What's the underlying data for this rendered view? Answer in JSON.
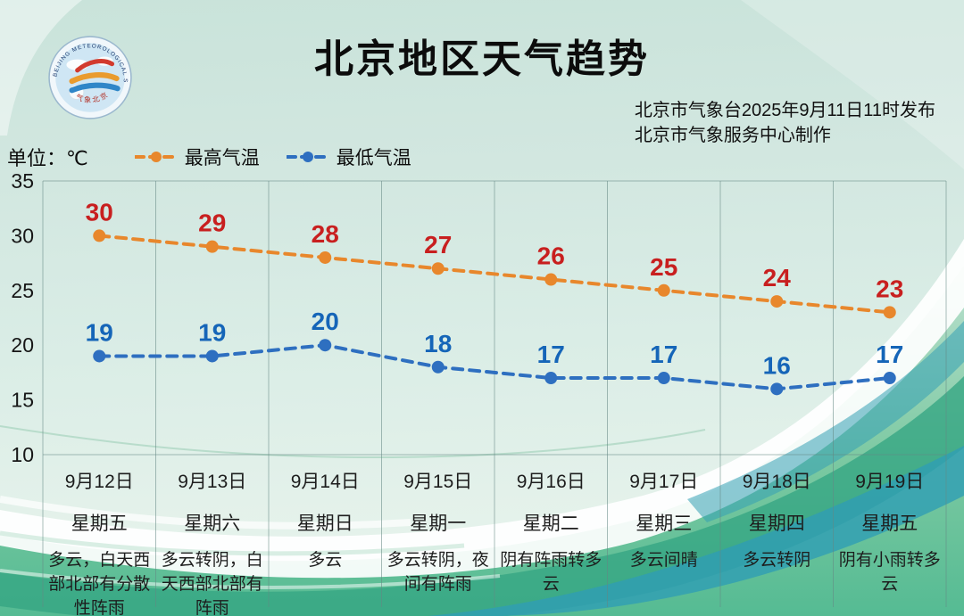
{
  "header": {
    "title": "北京地区天气趋势",
    "issued_by": "北京市气象台2025年9月11日11时发布",
    "produced_by": "北京市气象服务中心制作"
  },
  "logo": {
    "top_text": "BEIJING METEOROLOGICAL SERVICE",
    "bottom_text": "气象北京"
  },
  "unit_label": "单位：℃",
  "legend": [
    {
      "label": "最高气温",
      "color": "#e8872c"
    },
    {
      "label": "最低气温",
      "color": "#2e6fc0"
    }
  ],
  "chart_data": {
    "type": "line",
    "title": "北京地区天气趋势",
    "categories": [
      "9月12日",
      "9月13日",
      "9月14日",
      "9月15日",
      "9月16日",
      "9月17日",
      "9月18日",
      "9月19日"
    ],
    "weekdays": [
      "星期五",
      "星期六",
      "星期日",
      "星期一",
      "星期二",
      "星期三",
      "星期四",
      "星期五"
    ],
    "weather": [
      "多云，白天西部北部有分散性阵雨",
      "多云转阴，白天西部北部有阵雨",
      "多云",
      "多云转阴，夜间有阵雨",
      "阴有阵雨转多云",
      "多云间晴",
      "多云转阴",
      "阴有小雨转多云"
    ],
    "series": [
      {
        "name": "最高气温",
        "values": [
          30,
          29,
          28,
          27,
          26,
          25,
          24,
          23
        ],
        "line_color": "#e8872c",
        "label_color": "#c81f1f",
        "style": "dashed"
      },
      {
        "name": "最低气温",
        "values": [
          19,
          19,
          20,
          18,
          17,
          17,
          16,
          17
        ],
        "line_color": "#2e6fc0",
        "label_color": "#1565b8",
        "style": "dashed"
      }
    ],
    "ylabel": "单位：℃",
    "ylim": [
      10,
      35
    ],
    "yticks": [
      35,
      30,
      25,
      20,
      15,
      10
    ],
    "grid": "vertical-only",
    "legend_position": "top-left"
  }
}
